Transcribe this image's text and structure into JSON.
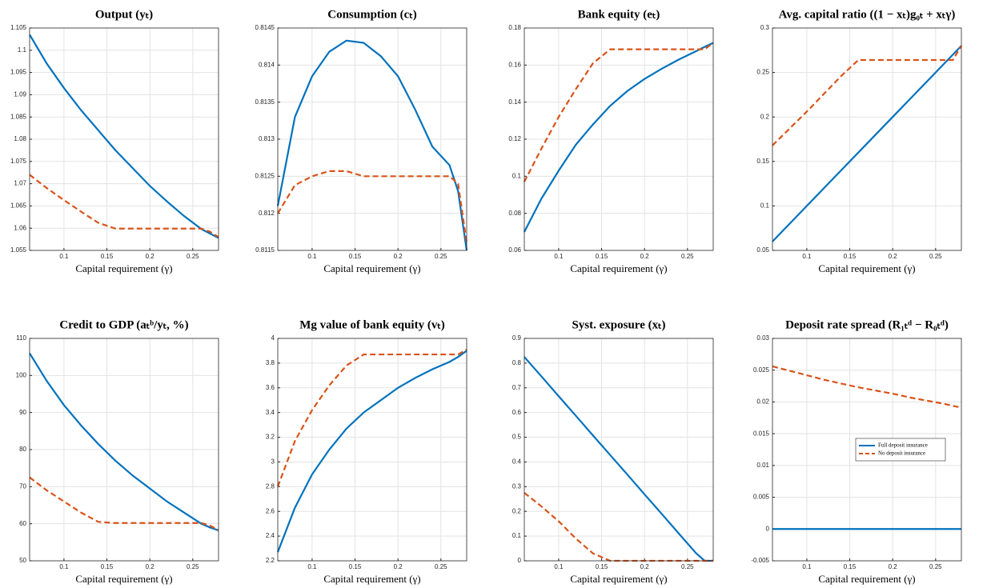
{
  "chart_data": [
    {
      "type": "line",
      "title": "Output (yₜ)",
      "x_label": "Capital requirement (γ)",
      "x": [
        0.06,
        0.08,
        0.1,
        0.12,
        0.14,
        0.16,
        0.18,
        0.2,
        0.22,
        0.24,
        0.26,
        0.27,
        0.28
      ],
      "series": [
        {
          "color": "#0072bd",
          "style": "solid",
          "values": [
            1.1035,
            1.097,
            1.0915,
            1.0865,
            1.082,
            1.0775,
            1.0735,
            1.0695,
            1.066,
            1.0627,
            1.0598,
            1.0588,
            1.0578
          ]
        },
        {
          "color": "#d95319",
          "style": "dashed",
          "values": [
            1.072,
            1.069,
            1.0663,
            1.0637,
            1.0612,
            1.0599,
            1.0599,
            1.0599,
            1.0599,
            1.0599,
            1.0599,
            1.0592,
            1.058
          ]
        }
      ],
      "xlim": [
        0.06,
        0.28
      ],
      "xticks": [
        0.1,
        0.15,
        0.2,
        0.25
      ],
      "ylim": [
        1.055,
        1.105
      ],
      "yticks": [
        1.055,
        1.06,
        1.065,
        1.07,
        1.075,
        1.08,
        1.085,
        1.09,
        1.095,
        1.1,
        1.105
      ],
      "grid": true
    },
    {
      "type": "line",
      "title": "Consumption (cₜ)",
      "x_label": "Capital requirement (γ)",
      "x": [
        0.06,
        0.08,
        0.1,
        0.12,
        0.14,
        0.16,
        0.18,
        0.2,
        0.22,
        0.24,
        0.26,
        0.27,
        0.28
      ],
      "series": [
        {
          "color": "#0072bd",
          "style": "solid",
          "values": [
            0.8121,
            0.8133,
            0.81385,
            0.81418,
            0.81433,
            0.8143,
            0.81412,
            0.81385,
            0.8134,
            0.8129,
            0.81265,
            0.8123,
            0.8115
          ]
        },
        {
          "color": "#d95319",
          "style": "dashed",
          "values": [
            0.812,
            0.81238,
            0.8125,
            0.81257,
            0.81257,
            0.8125,
            0.8125,
            0.8125,
            0.8125,
            0.8125,
            0.8125,
            0.8124,
            0.8116
          ]
        }
      ],
      "xlim": [
        0.06,
        0.28
      ],
      "xticks": [
        0.1,
        0.15,
        0.2,
        0.25
      ],
      "ylim": [
        0.8115,
        0.8145
      ],
      "yticks": [
        0.8115,
        0.812,
        0.8125,
        0.813,
        0.8135,
        0.814,
        0.8145
      ],
      "grid": true
    },
    {
      "type": "line",
      "title": "Bank equity (eₜ)",
      "x_label": "Capital requirement (γ)",
      "x": [
        0.06,
        0.08,
        0.1,
        0.12,
        0.14,
        0.16,
        0.18,
        0.2,
        0.22,
        0.24,
        0.26,
        0.27,
        0.28
      ],
      "series": [
        {
          "color": "#0072bd",
          "style": "solid",
          "values": [
            0.07,
            0.088,
            0.103,
            0.117,
            0.128,
            0.138,
            0.146,
            0.1525,
            0.158,
            0.163,
            0.1675,
            0.1698,
            0.172
          ]
        },
        {
          "color": "#d95319",
          "style": "dashed",
          "values": [
            0.097,
            0.115,
            0.132,
            0.147,
            0.161,
            0.1685,
            0.1685,
            0.1685,
            0.1685,
            0.1685,
            0.1685,
            0.1685,
            0.172
          ]
        }
      ],
      "xlim": [
        0.06,
        0.28
      ],
      "xticks": [
        0.1,
        0.15,
        0.2,
        0.25
      ],
      "ylim": [
        0.06,
        0.18
      ],
      "yticks": [
        0.06,
        0.08,
        0.1,
        0.12,
        0.14,
        0.16,
        0.18
      ],
      "grid": true
    },
    {
      "type": "line",
      "title": "Avg. capital ratio ((1 − xₜ)g₀ₜ + xₜγ)",
      "x_label": "Capital requirement (γ)",
      "x": [
        0.06,
        0.08,
        0.1,
        0.12,
        0.14,
        0.16,
        0.18,
        0.2,
        0.22,
        0.24,
        0.26,
        0.27,
        0.28
      ],
      "series": [
        {
          "color": "#0072bd",
          "style": "solid",
          "values": [
            0.06,
            0.08,
            0.1,
            0.12,
            0.14,
            0.16,
            0.18,
            0.2,
            0.22,
            0.24,
            0.26,
            0.27,
            0.28
          ]
        },
        {
          "color": "#d95319",
          "style": "dashed",
          "values": [
            0.168,
            0.187,
            0.206,
            0.226,
            0.246,
            0.264,
            0.264,
            0.264,
            0.264,
            0.264,
            0.264,
            0.264,
            0.28
          ]
        }
      ],
      "xlim": [
        0.06,
        0.28
      ],
      "xticks": [
        0.1,
        0.15,
        0.2,
        0.25
      ],
      "ylim": [
        0.05,
        0.3
      ],
      "yticks": [
        0.05,
        0.1,
        0.15,
        0.2,
        0.25,
        0.3
      ],
      "grid": true
    },
    {
      "type": "line",
      "title": "Credit to GDP (aₜᵇ/yₜ, %)",
      "x_label": "Capital requirement (γ)",
      "x": [
        0.06,
        0.08,
        0.1,
        0.12,
        0.14,
        0.16,
        0.18,
        0.2,
        0.22,
        0.24,
        0.26,
        0.27,
        0.28
      ],
      "series": [
        {
          "color": "#0072bd",
          "style": "solid",
          "values": [
            106,
            98.5,
            92,
            86.5,
            81.5,
            77,
            73,
            69.5,
            66,
            63,
            60,
            59,
            58.2
          ]
        },
        {
          "color": "#d95319",
          "style": "dashed",
          "values": [
            72.5,
            69,
            66,
            63,
            60.5,
            60.2,
            60.2,
            60.2,
            60.2,
            60.2,
            60.2,
            59.5,
            58.3
          ]
        }
      ],
      "xlim": [
        0.06,
        0.28
      ],
      "xticks": [
        0.1,
        0.15,
        0.2,
        0.25
      ],
      "ylim": [
        50,
        110
      ],
      "yticks": [
        50,
        60,
        70,
        80,
        90,
        100,
        110
      ],
      "grid": true
    },
    {
      "type": "line",
      "title": "Mg value of bank equity (vₜ)",
      "x_label": "Capital requirement (γ)",
      "x": [
        0.06,
        0.08,
        0.1,
        0.12,
        0.14,
        0.16,
        0.18,
        0.2,
        0.22,
        0.24,
        0.26,
        0.27,
        0.28
      ],
      "series": [
        {
          "color": "#0072bd",
          "style": "solid",
          "values": [
            2.27,
            2.63,
            2.9,
            3.1,
            3.27,
            3.4,
            3.5,
            3.6,
            3.68,
            3.75,
            3.81,
            3.85,
            3.9
          ]
        },
        {
          "color": "#d95319",
          "style": "dashed",
          "values": [
            2.8,
            3.17,
            3.42,
            3.62,
            3.78,
            3.87,
            3.87,
            3.87,
            3.87,
            3.87,
            3.87,
            3.87,
            3.91
          ]
        }
      ],
      "xlim": [
        0.06,
        0.28
      ],
      "xticks": [
        0.1,
        0.15,
        0.2,
        0.25
      ],
      "ylim": [
        2.2,
        4
      ],
      "yticks": [
        2.2,
        2.4,
        2.6,
        2.8,
        3,
        3.2,
        3.4,
        3.6,
        3.8,
        4
      ],
      "grid": true
    },
    {
      "type": "line",
      "title": "Syst. exposure (xₜ)",
      "x_label": "Capital requirement (γ)",
      "x": [
        0.06,
        0.08,
        0.1,
        0.12,
        0.14,
        0.16,
        0.18,
        0.2,
        0.22,
        0.24,
        0.26,
        0.27,
        0.28
      ],
      "series": [
        {
          "color": "#0072bd",
          "style": "solid",
          "values": [
            0.825,
            0.746,
            0.666,
            0.587,
            0.507,
            0.428,
            0.349,
            0.269,
            0.19,
            0.11,
            0.031,
            0,
            0
          ]
        },
        {
          "color": "#d95319",
          "style": "dashed",
          "values": [
            0.275,
            0.22,
            0.16,
            0.09,
            0.03,
            0,
            0,
            0,
            0,
            0,
            0,
            0,
            0
          ]
        }
      ],
      "xlim": [
        0.06,
        0.28
      ],
      "xticks": [
        0.1,
        0.15,
        0.2,
        0.25
      ],
      "ylim": [
        0,
        0.9
      ],
      "yticks": [
        0,
        0.1,
        0.2,
        0.3,
        0.4,
        0.5,
        0.6,
        0.7,
        0.8,
        0.9
      ],
      "grid": true
    },
    {
      "type": "line",
      "title": "Deposit rate spread (R₁ₜᵈ − R₀ₜᵈ)",
      "x_label": "Capital requirement (γ)",
      "x": [
        0.06,
        0.08,
        0.1,
        0.12,
        0.14,
        0.16,
        0.18,
        0.2,
        0.22,
        0.24,
        0.26,
        0.27,
        0.28
      ],
      "series": [
        {
          "name": "Full deposit insurance",
          "color": "#0072bd",
          "style": "solid",
          "values": [
            0,
            0,
            0,
            0,
            0,
            0,
            0,
            0,
            0,
            0,
            0,
            0,
            0
          ]
        },
        {
          "name": "No deposit insurance",
          "color": "#d95319",
          "style": "dashed",
          "values": [
            0.0256,
            0.0249,
            0.0242,
            0.0235,
            0.0229,
            0.0223,
            0.0218,
            0.0213,
            0.0207,
            0.0202,
            0.0197,
            0.0194,
            0.0191
          ]
        }
      ],
      "xlim": [
        0.06,
        0.28
      ],
      "xticks": [
        0.1,
        0.15,
        0.2,
        0.25
      ],
      "ylim": [
        -0.005,
        0.03
      ],
      "yticks": [
        -0.005,
        0,
        0.005,
        0.01,
        0.015,
        0.02,
        0.025,
        0.03
      ],
      "grid": true,
      "legend": "center right"
    }
  ]
}
